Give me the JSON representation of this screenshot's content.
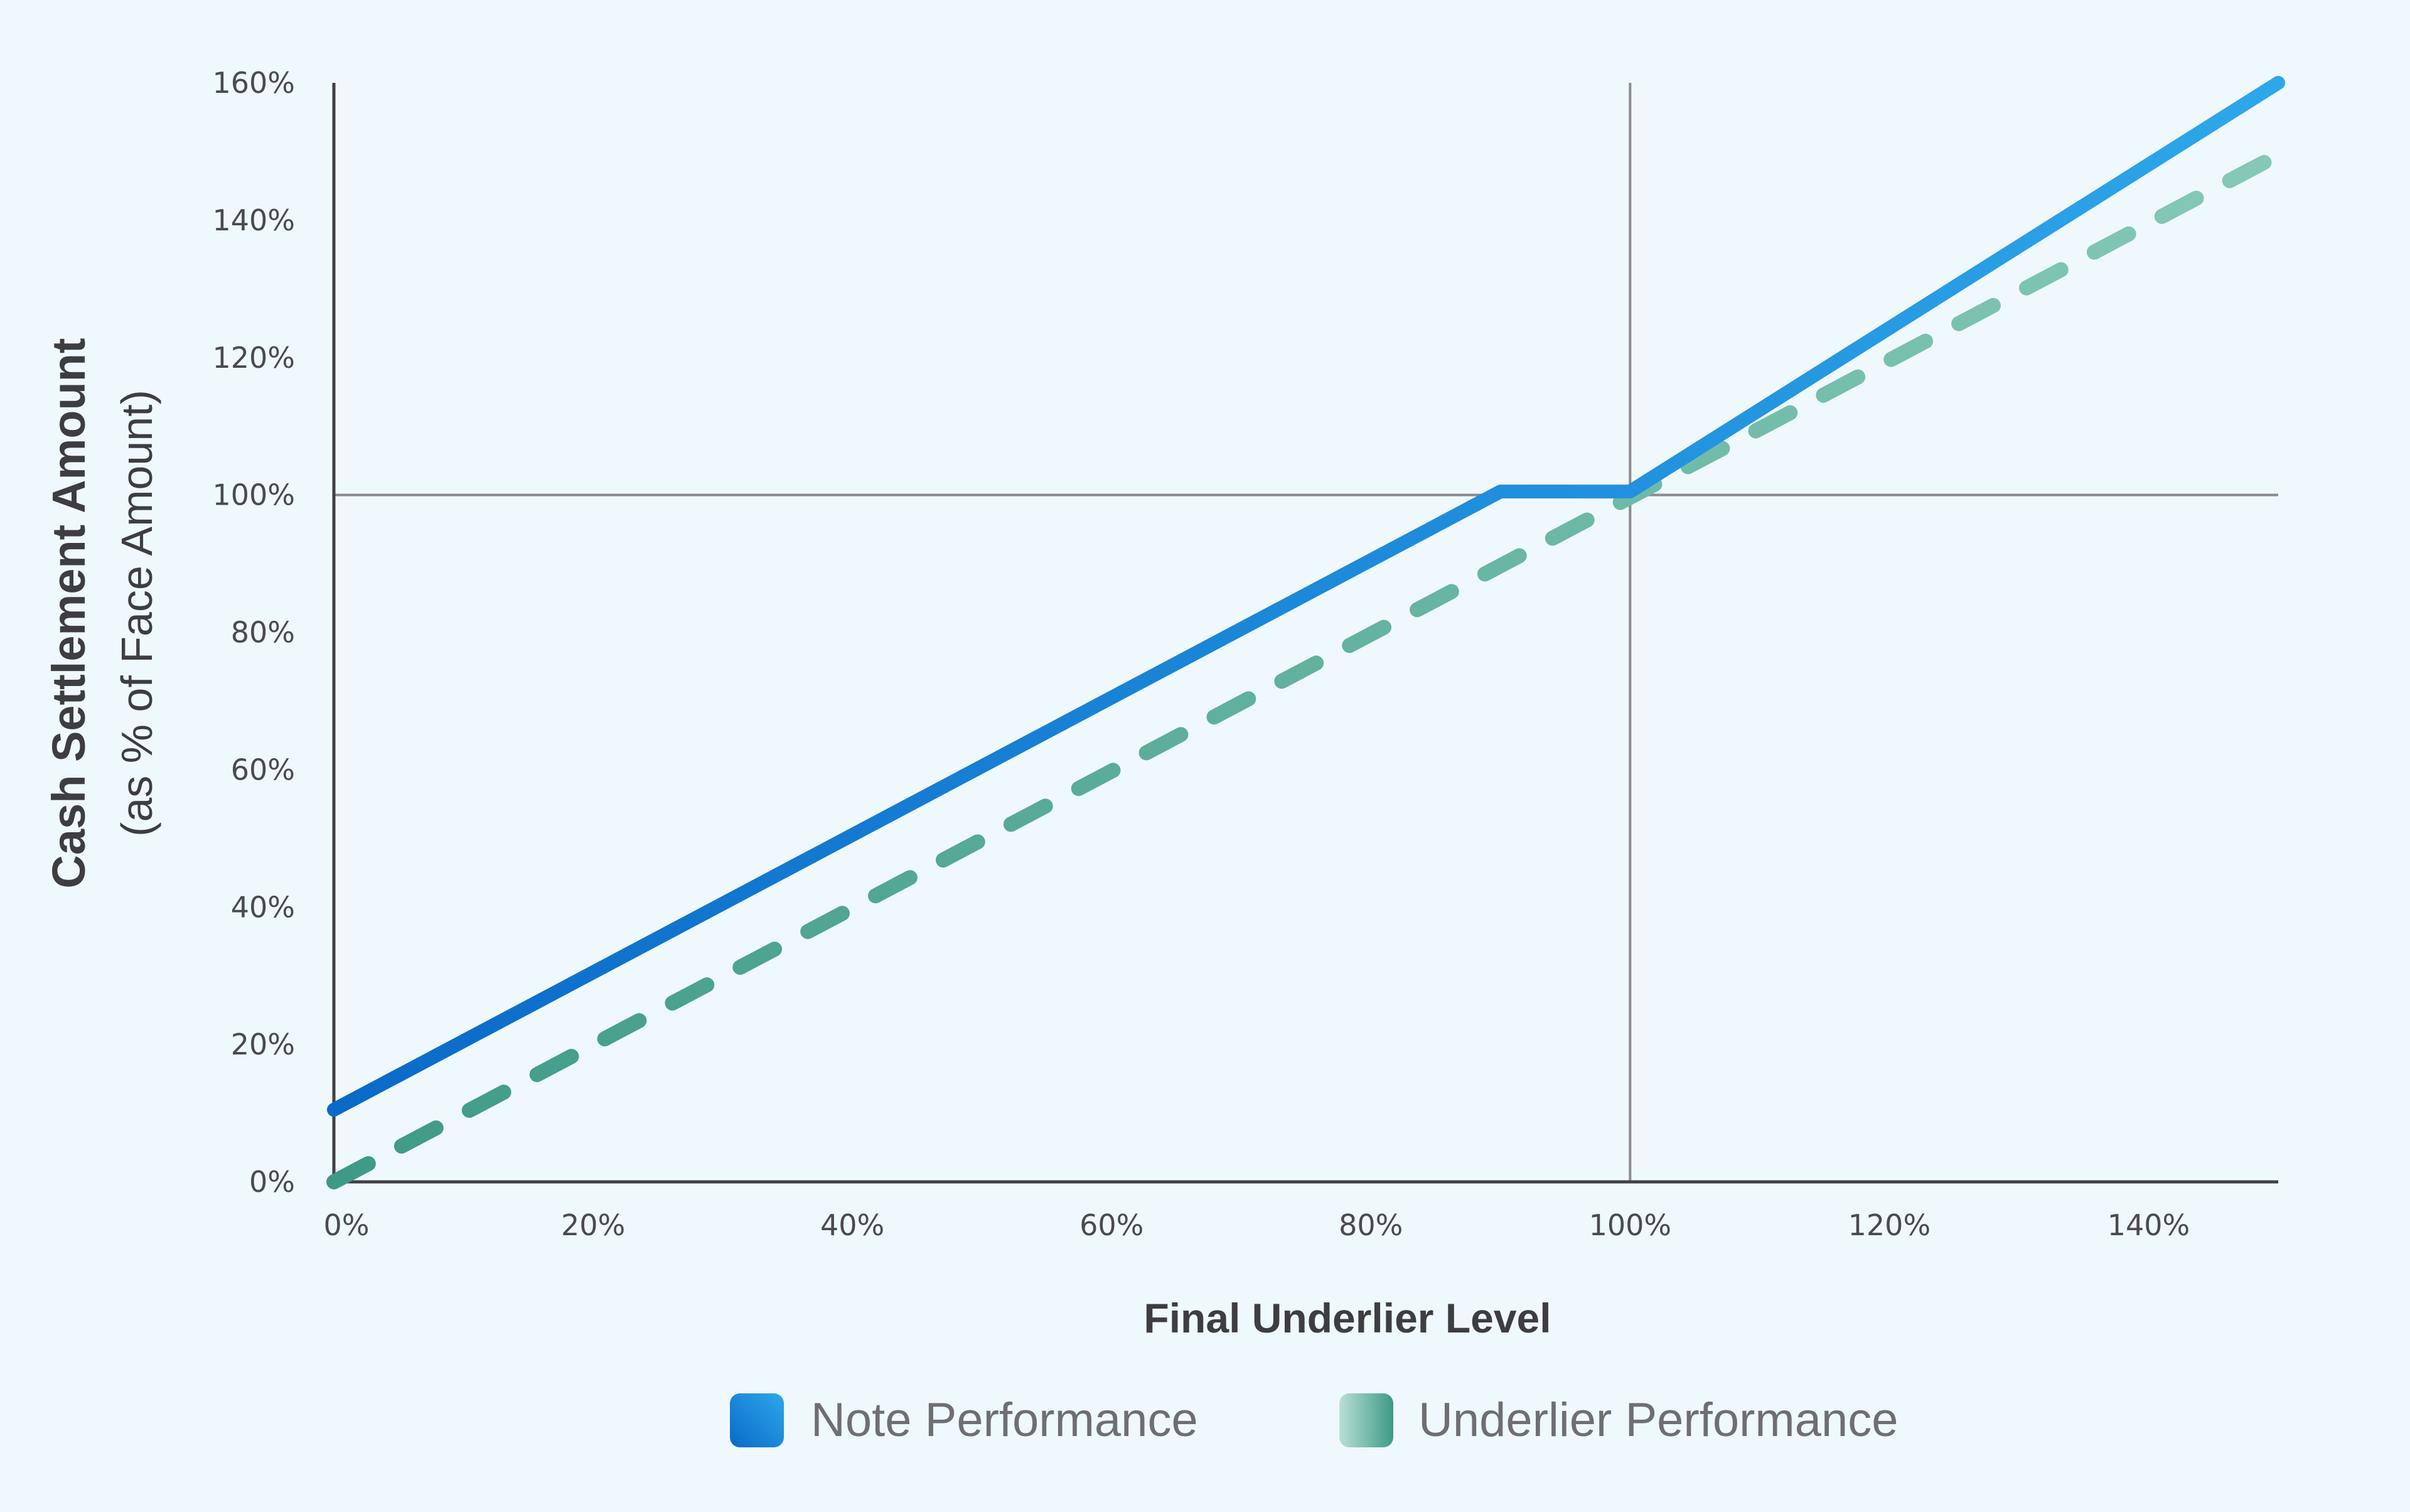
{
  "chart_data": {
    "type": "line",
    "title": "",
    "xlabel": "Final Underlier Level",
    "ylabel": "Cash Settlement Amount",
    "ylabel_sub": "(as % of Face Amount)",
    "xlim": [
      0,
      150
    ],
    "ylim": [
      0,
      160
    ],
    "x_ticks": [
      "0%",
      "20%",
      "40%",
      "60%",
      "80%",
      "100%",
      "120%",
      "140%"
    ],
    "x_tick_values": [
      0,
      20,
      40,
      60,
      80,
      100,
      120,
      140
    ],
    "y_ticks": [
      "0%",
      "20%",
      "40%",
      "60%",
      "80%",
      "100%",
      "120%",
      "140%",
      "160%"
    ],
    "y_tick_values": [
      0,
      20,
      40,
      60,
      80,
      100,
      120,
      140,
      160
    ],
    "reference_lines": {
      "x": 100,
      "y": 100
    },
    "legend_position": "bottom-center",
    "series": [
      {
        "name": "Note Performance",
        "style": "solid",
        "color_start": "#0a6ac8",
        "color_end": "#2ea7ea",
        "x": [
          0,
          90,
          100,
          150
        ],
        "y": [
          10.5,
          100.5,
          100.5,
          160
        ]
      },
      {
        "name": "Underlier Performance",
        "style": "dashed",
        "color_start": "#3e9a86",
        "color_end": "#86c9b8",
        "x": [
          0,
          150
        ],
        "y": [
          0,
          149.5
        ]
      }
    ]
  }
}
